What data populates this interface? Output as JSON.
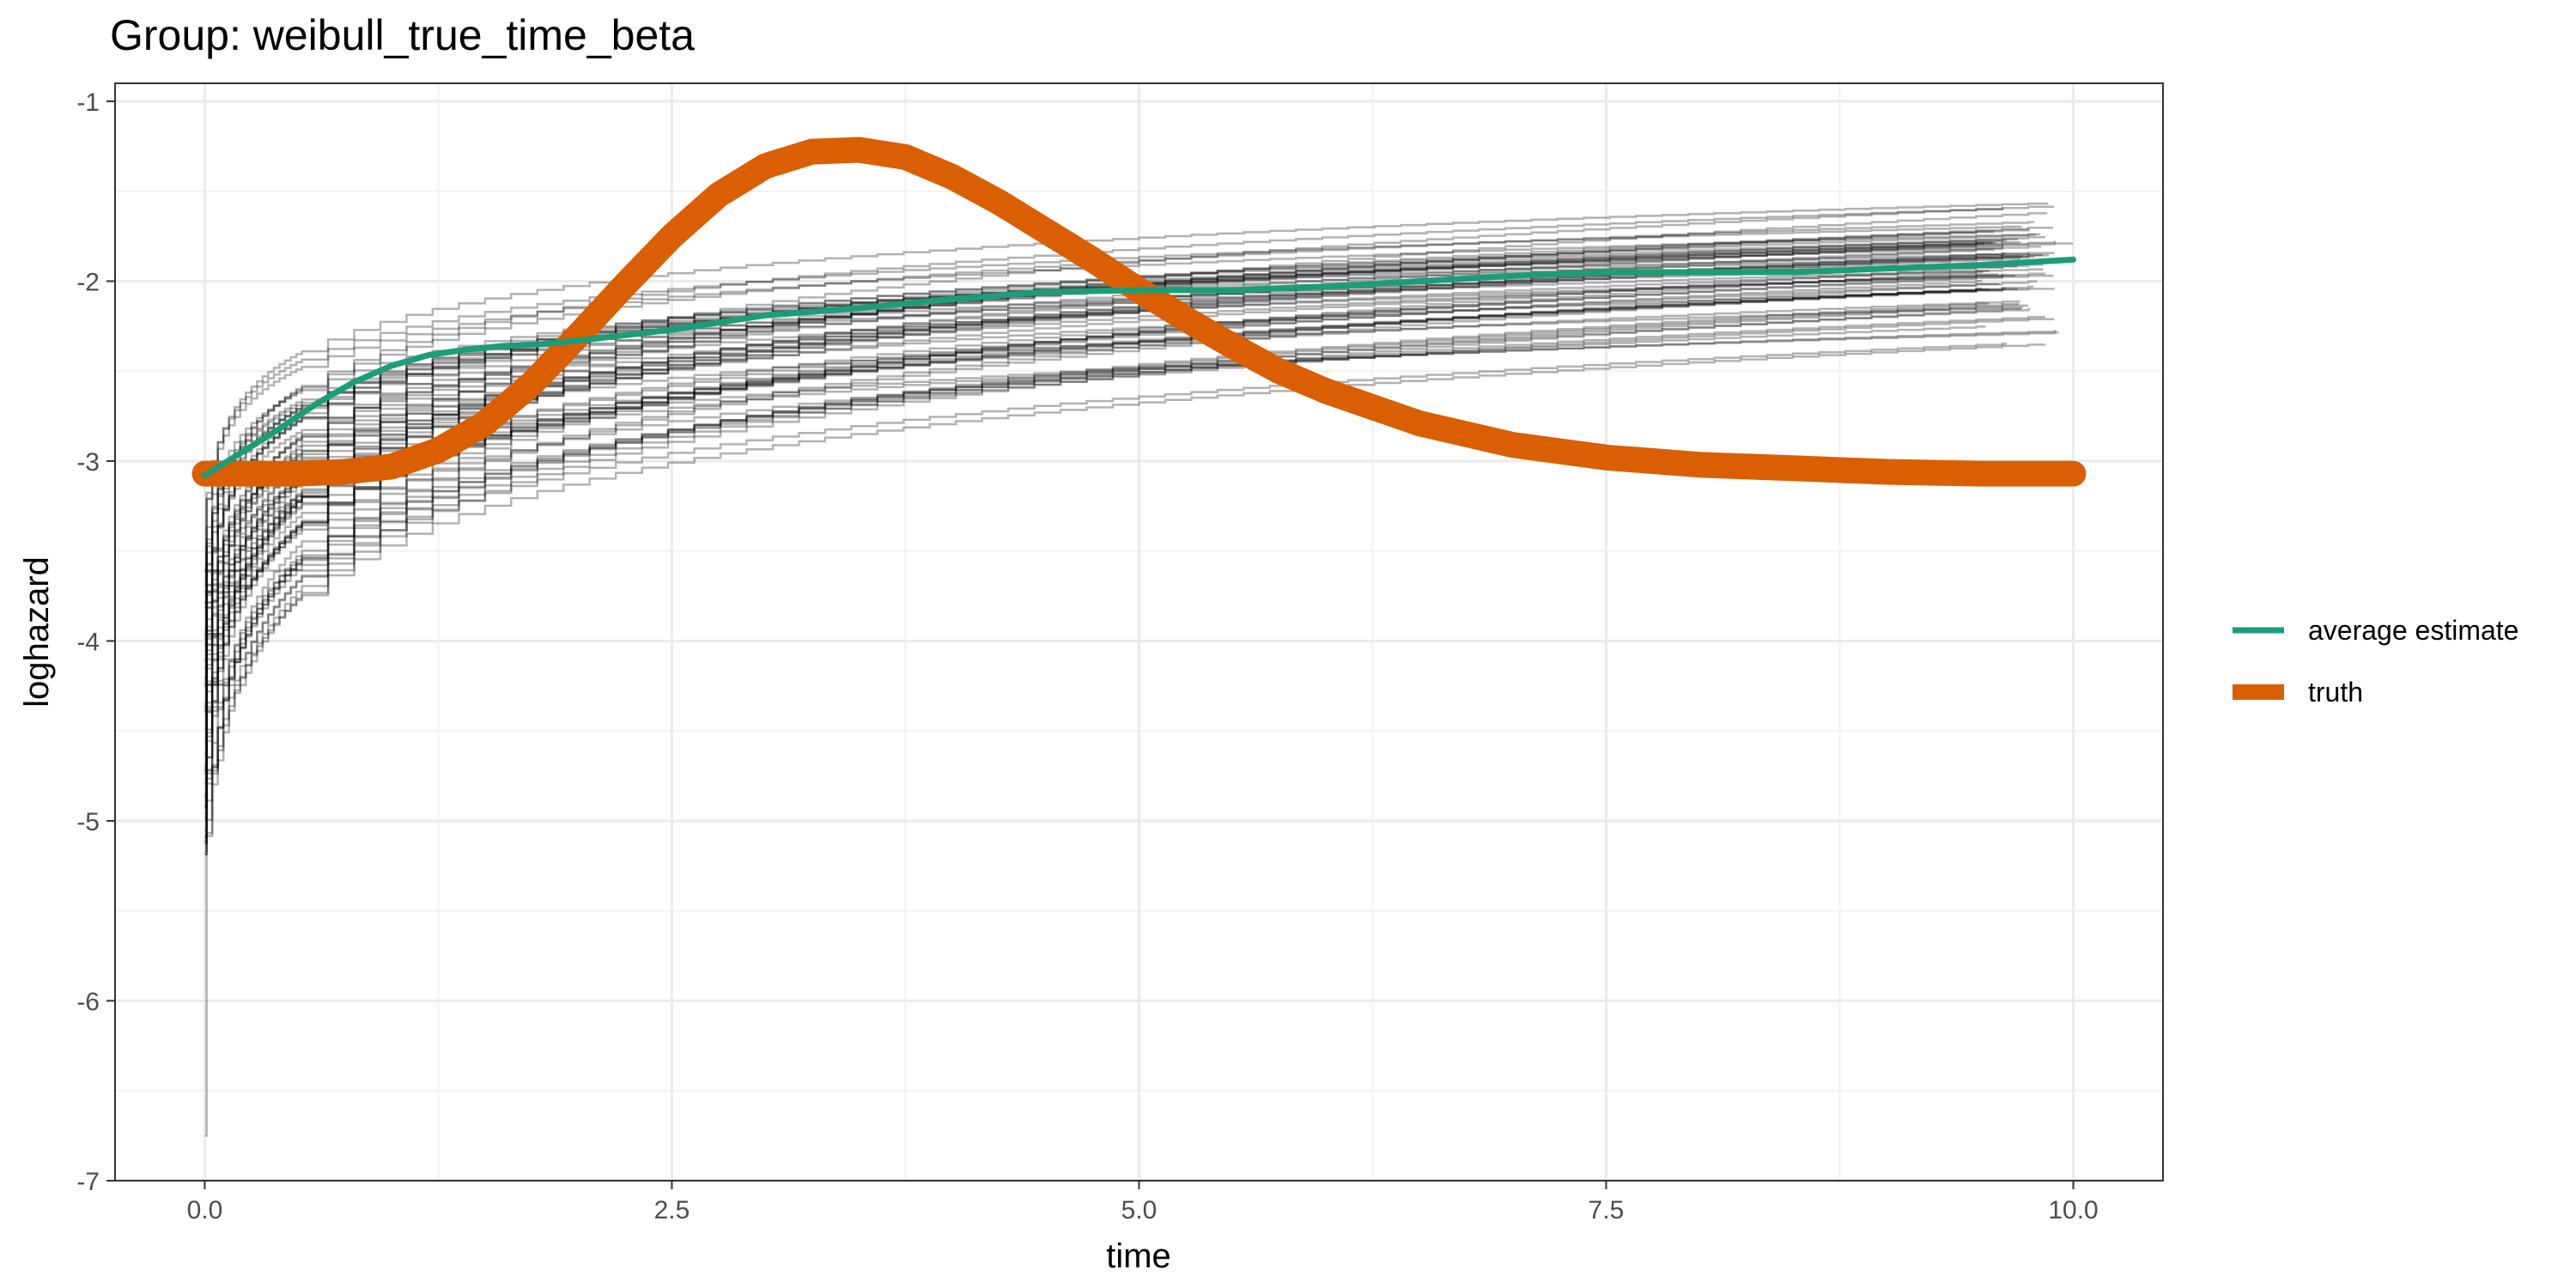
{
  "chart_data": {
    "type": "line",
    "title": "Group: weibull_true_time_beta",
    "xlabel": "time",
    "ylabel": "loghazard",
    "xlim": [
      -0.48,
      10.48
    ],
    "ylim": [
      -7.0,
      -0.9
    ],
    "x_ticks": [
      0.0,
      2.5,
      5.0,
      7.5,
      10.0
    ],
    "x_tick_labels": [
      "0.0",
      "2.5",
      "5.0",
      "7.5",
      "10.0"
    ],
    "y_ticks": [
      -7,
      -6,
      -5,
      -4,
      -3,
      -2,
      -1
    ],
    "y_tick_labels": [
      "-7",
      "-6",
      "-5",
      "-4",
      "-3",
      "-2",
      "-1"
    ],
    "grid": true,
    "legend_position": "right",
    "series": [
      {
        "name": "average estimate",
        "color": "#1b9e77",
        "x": [
          0.0,
          0.2,
          0.4,
          0.6,
          0.8,
          1.0,
          1.2,
          1.4,
          1.6,
          1.8,
          2.0,
          2.5,
          3.0,
          3.5,
          4.0,
          4.5,
          5.0,
          5.5,
          6.0,
          6.5,
          7.0,
          7.5,
          8.0,
          8.5,
          9.0,
          9.5,
          10.0
        ],
        "values": [
          -3.08,
          -2.95,
          -2.82,
          -2.68,
          -2.56,
          -2.47,
          -2.41,
          -2.38,
          -2.36,
          -2.35,
          -2.33,
          -2.27,
          -2.19,
          -2.15,
          -2.1,
          -2.06,
          -2.05,
          -2.05,
          -2.03,
          -2.0,
          -1.97,
          -1.95,
          -1.95,
          -1.95,
          -1.93,
          -1.91,
          -1.88
        ]
      },
      {
        "name": "truth",
        "color": "#d95f02",
        "x": [
          0.0,
          0.25,
          0.5,
          0.75,
          1.0,
          1.25,
          1.5,
          1.75,
          2.0,
          2.25,
          2.5,
          2.75,
          3.0,
          3.25,
          3.5,
          3.75,
          4.0,
          4.25,
          4.5,
          4.75,
          5.0,
          5.25,
          5.5,
          5.75,
          6.0,
          6.5,
          7.0,
          7.5,
          8.0,
          8.5,
          9.0,
          9.5,
          10.0
        ],
        "values": [
          -3.07,
          -3.07,
          -3.07,
          -3.06,
          -3.03,
          -2.94,
          -2.79,
          -2.57,
          -2.3,
          -2.02,
          -1.75,
          -1.52,
          -1.36,
          -1.28,
          -1.27,
          -1.31,
          -1.42,
          -1.56,
          -1.72,
          -1.88,
          -2.05,
          -2.21,
          -2.36,
          -2.5,
          -2.61,
          -2.79,
          -2.91,
          -2.98,
          -3.02,
          -3.04,
          -3.06,
          -3.07,
          -3.07
        ]
      }
    ],
    "replicates": {
      "color": "#000000",
      "opacity": 0.3,
      "count": 64,
      "curve_form": "step",
      "plateau_range": [
        -2.6,
        -1.15
      ],
      "min_start": -6.75
    }
  }
}
